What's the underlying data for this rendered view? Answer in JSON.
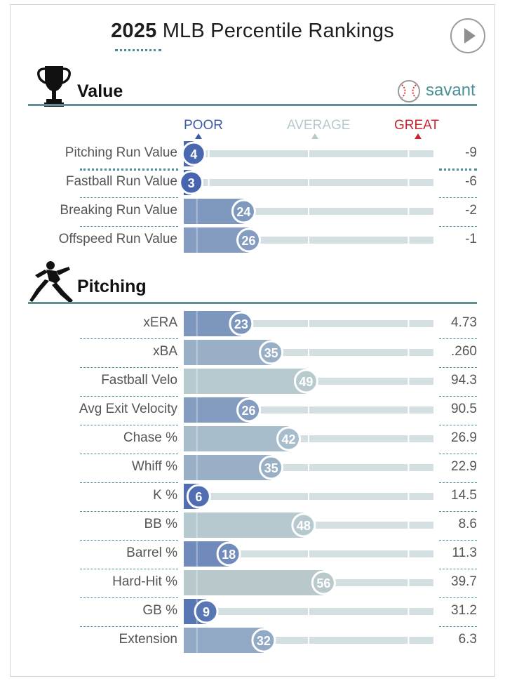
{
  "title": {
    "year": "2025",
    "rest": "MLB Percentile Rankings"
  },
  "savant_label": "savant",
  "scale": {
    "poor": "POOR",
    "average": "AVERAGE",
    "great": "GREAT"
  },
  "colors": {
    "teal": "#5f8f93",
    "poor": "#3b5bab",
    "average": "#b9cdd0",
    "great": "#c8262e"
  },
  "icons": {
    "value": "trophy-icon",
    "pitching": "pitcher-icon",
    "savant": "baseball-icon",
    "play": "play-icon"
  },
  "chart_data": [
    {
      "type": "bar",
      "title": "Value",
      "xlim": [
        0,
        100
      ],
      "categories": [
        "Pitching Run Value",
        "Fastball Run Value",
        "Breaking Run Value",
        "Offspeed Run Value"
      ],
      "values": [
        4,
        3,
        24,
        26
      ],
      "stat_values": [
        "-9",
        "-6",
        "-2",
        "-1"
      ]
    },
    {
      "type": "bar",
      "title": "Pitching",
      "xlim": [
        0,
        100
      ],
      "categories": [
        "xERA",
        "xBA",
        "Fastball Velo",
        "Avg Exit Velocity",
        "Chase %",
        "Whiff %",
        "K %",
        "BB %",
        "Barrel %",
        "Hard-Hit %",
        "GB %",
        "Extension"
      ],
      "values": [
        23,
        35,
        49,
        26,
        42,
        35,
        6,
        48,
        18,
        56,
        9,
        32
      ],
      "stat_values": [
        "4.73",
        ".260",
        "94.3",
        "90.5",
        "26.9",
        "22.9",
        "14.5",
        "8.6",
        "11.3",
        "39.7",
        "31.2",
        "6.3"
      ]
    }
  ]
}
